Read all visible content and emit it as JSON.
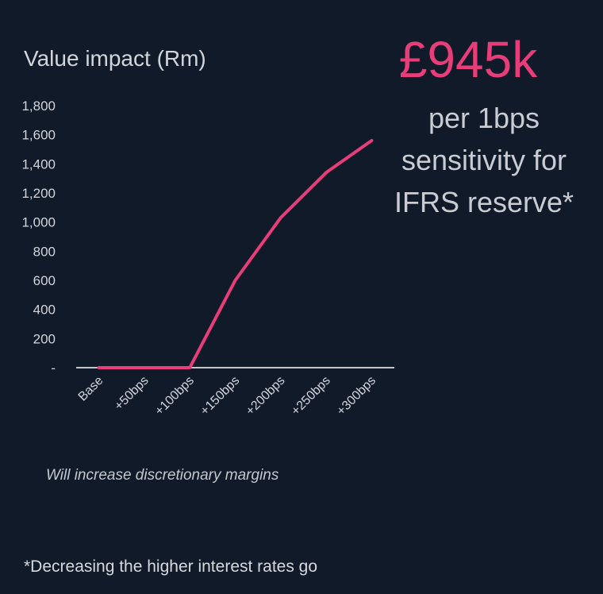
{
  "headline": {
    "value": "£945k",
    "description": "per 1bps sensitivity for IFRS reserve*"
  },
  "note": "Will increase discretionary margins",
  "footnote": "*Decreasing the higher interest rates go",
  "colors": {
    "background": "#111a28",
    "accent": "#e83d78",
    "text": "#d2d5dc",
    "axis": "#ffffff"
  },
  "chart_data": {
    "type": "line",
    "title": "Value impact (Rm)",
    "categories": [
      "Base",
      "+50bps",
      "+100bps",
      "+150bps",
      "+200bps",
      "+250bps",
      "+300bps"
    ],
    "series": [
      {
        "values": [
          0,
          0,
          0,
          600,
          1030,
          1340,
          1560
        ]
      }
    ],
    "y_ticks": [
      {
        "value": 0,
        "label": "-"
      },
      {
        "value": 200,
        "label": "200"
      },
      {
        "value": 400,
        "label": "400"
      },
      {
        "value": 600,
        "label": "600"
      },
      {
        "value": 800,
        "label": "800"
      },
      {
        "value": 1000,
        "label": "1,000"
      },
      {
        "value": 1200,
        "label": "1,200"
      },
      {
        "value": 1400,
        "label": "1,400"
      },
      {
        "value": 1600,
        "label": "1,600"
      },
      {
        "value": 1800,
        "label": "1,800"
      }
    ],
    "ylim": [
      0,
      1800
    ],
    "grid": false,
    "legend": "none"
  }
}
